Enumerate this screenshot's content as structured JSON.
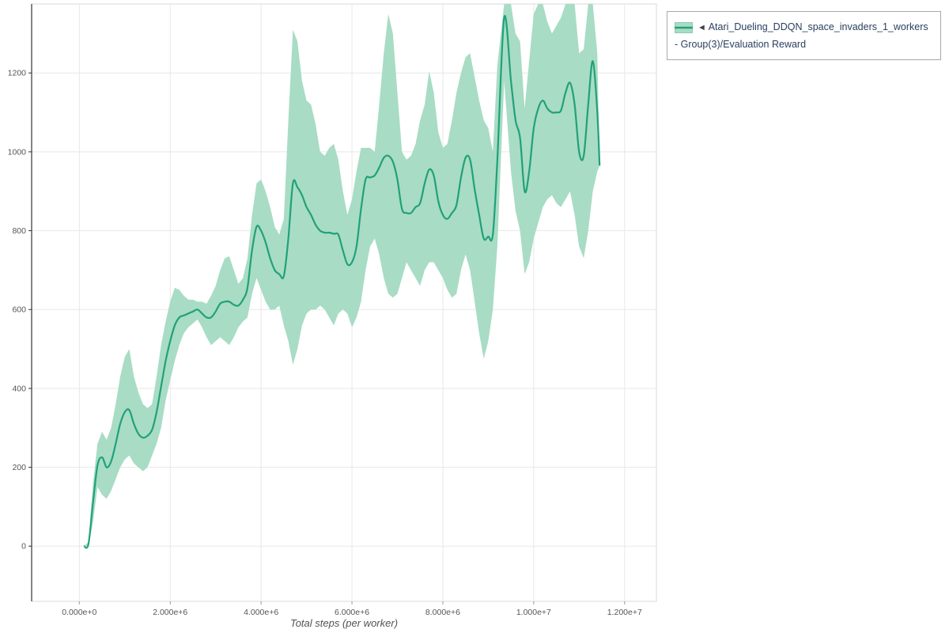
{
  "chart_data": {
    "type": "line",
    "title": "",
    "xlabel": "Total steps (per worker)",
    "ylabel": "",
    "grid": true,
    "xlim": [
      -1050000,
      12700000
    ],
    "ylim": [
      -140,
      1375
    ],
    "x_ticks": [
      {
        "value": 0,
        "label": "0.000e+0"
      },
      {
        "value": 2000000,
        "label": "2.000e+6"
      },
      {
        "value": 4000000,
        "label": "4.000e+6"
      },
      {
        "value": 6000000,
        "label": "6.000e+6"
      },
      {
        "value": 8000000,
        "label": "8.000e+6"
      },
      {
        "value": 10000000,
        "label": "1.000e+7"
      },
      {
        "value": 12000000,
        "label": "1.200e+7"
      }
    ],
    "y_ticks": [
      {
        "value": 0,
        "label": "0"
      },
      {
        "value": 200,
        "label": "200"
      },
      {
        "value": 400,
        "label": "400"
      },
      {
        "value": 600,
        "label": "600"
      },
      {
        "value": 800,
        "label": "800"
      },
      {
        "value": 1000,
        "label": "1000"
      },
      {
        "value": 1200,
        "label": "1200"
      }
    ],
    "legend": {
      "position": "top-right",
      "marker": "◄",
      "label": "Atari_Dueling_DDQN_space_invaders_1_workers - Group(3)/Evaluation Reward"
    },
    "colors": {
      "line": "#21a179",
      "band": "#a8dcc5",
      "grid": "#e8e8e8",
      "plot_border": "#d9d9d9",
      "axis": "#333333",
      "tick_text": "#555555"
    },
    "series": [
      {
        "name": "Atari_Dueling_DDQN_space_invaders_1_workers - Group(3)/Evaluation Reward",
        "x": [
          100000,
          200000,
          300000,
          400000,
          500000,
          600000,
          700000,
          800000,
          900000,
          1000000,
          1100000,
          1200000,
          1300000,
          1400000,
          1500000,
          1600000,
          1700000,
          1800000,
          1900000,
          2000000,
          2100000,
          2200000,
          2300000,
          2400000,
          2500000,
          2600000,
          2700000,
          2800000,
          2900000,
          3000000,
          3100000,
          3200000,
          3300000,
          3400000,
          3500000,
          3600000,
          3700000,
          3800000,
          3900000,
          4000000,
          4100000,
          4200000,
          4300000,
          4400000,
          4500000,
          4600000,
          4700000,
          4800000,
          4900000,
          5000000,
          5100000,
          5200000,
          5300000,
          5400000,
          5500000,
          5600000,
          5700000,
          5800000,
          5900000,
          6000000,
          6100000,
          6200000,
          6300000,
          6400000,
          6500000,
          6600000,
          6700000,
          6800000,
          6900000,
          7000000,
          7100000,
          7200000,
          7300000,
          7400000,
          7500000,
          7600000,
          7700000,
          7800000,
          7900000,
          8000000,
          8100000,
          8200000,
          8300000,
          8400000,
          8500000,
          8600000,
          8700000,
          8800000,
          8900000,
          9000000,
          9100000,
          9200000,
          9350000,
          9500000,
          9600000,
          9700000,
          9800000,
          9900000,
          10000000,
          10100000,
          10200000,
          10300000,
          10400000,
          10500000,
          10600000,
          10700000,
          10800000,
          10900000,
          11000000,
          11100000,
          11200000,
          11300000,
          11400000,
          11450000
        ],
        "mean": [
          0,
          5,
          110,
          205,
          225,
          200,
          215,
          260,
          310,
          340,
          345,
          310,
          285,
          275,
          280,
          295,
          340,
          405,
          470,
          520,
          560,
          580,
          585,
          590,
          595,
          600,
          590,
          580,
          580,
          595,
          615,
          620,
          620,
          612,
          610,
          625,
          655,
          750,
          810,
          800,
          770,
          730,
          700,
          690,
          685,
          780,
          920,
          910,
          890,
          860,
          840,
          815,
          800,
          795,
          795,
          792,
          790,
          750,
          715,
          720,
          760,
          855,
          930,
          935,
          940,
          960,
          985,
          990,
          975,
          930,
          855,
          845,
          845,
          860,
          870,
          920,
          955,
          940,
          875,
          840,
          830,
          845,
          865,
          935,
          985,
          980,
          905,
          840,
          780,
          785,
          790,
          980,
          1340,
          1180,
          1080,
          1035,
          900,
          950,
          1060,
          1110,
          1130,
          1110,
          1100,
          1100,
          1105,
          1150,
          1175,
          1120,
          1000,
          990,
          1120,
          1230,
          1100,
          965
        ],
        "lower": [
          0,
          0,
          60,
          150,
          130,
          120,
          140,
          170,
          200,
          220,
          230,
          210,
          200,
          190,
          200,
          230,
          260,
          300,
          370,
          420,
          470,
          510,
          540,
          555,
          565,
          575,
          555,
          530,
          510,
          520,
          530,
          520,
          510,
          530,
          555,
          570,
          580,
          640,
          680,
          650,
          620,
          600,
          600,
          610,
          560,
          520,
          460,
          500,
          560,
          590,
          600,
          600,
          610,
          600,
          580,
          560,
          590,
          600,
          590,
          555,
          580,
          620,
          700,
          760,
          780,
          740,
          680,
          640,
          630,
          640,
          680,
          720,
          700,
          680,
          660,
          700,
          720,
          720,
          700,
          680,
          650,
          630,
          640,
          700,
          740,
          700,
          620,
          540,
          475,
          520,
          600,
          760,
          1180,
          950,
          850,
          800,
          690,
          720,
          780,
          820,
          860,
          880,
          890,
          870,
          860,
          880,
          900,
          840,
          760,
          730,
          800,
          900,
          950,
          965
        ],
        "upper": [
          0,
          10,
          160,
          260,
          290,
          270,
          300,
          360,
          430,
          480,
          500,
          430,
          390,
          360,
          350,
          360,
          430,
          510,
          570,
          620,
          655,
          650,
          635,
          625,
          625,
          620,
          620,
          615,
          635,
          660,
          700,
          730,
          735,
          700,
          665,
          680,
          730,
          840,
          920,
          930,
          900,
          860,
          810,
          790,
          830,
          1080,
          1310,
          1280,
          1180,
          1130,
          1120,
          1070,
          1000,
          990,
          1010,
          1020,
          980,
          900,
          840,
          880,
          950,
          1010,
          1010,
          1010,
          1000,
          1120,
          1250,
          1350,
          1300,
          1150,
          1000,
          980,
          990,
          1020,
          1080,
          1120,
          1205,
          1150,
          1050,
          1010,
          1020,
          1080,
          1150,
          1200,
          1240,
          1250,
          1190,
          1130,
          1080,
          1060,
          1000,
          1220,
          1375,
          1375,
          1300,
          1280,
          1110,
          1230,
          1350,
          1375,
          1375,
          1330,
          1300,
          1320,
          1340,
          1375,
          1375,
          1375,
          1250,
          1260,
          1375,
          1375,
          1250,
          965
        ]
      }
    ]
  }
}
